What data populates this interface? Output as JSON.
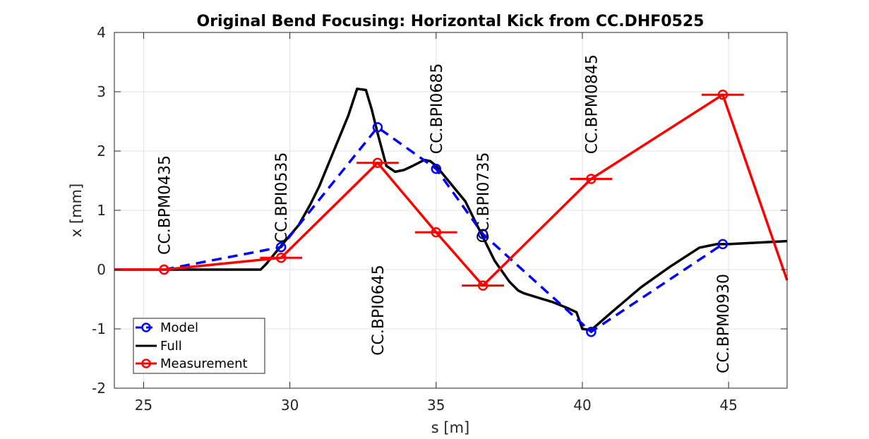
{
  "chart_data": {
    "type": "line",
    "title": "Original Bend Focusing: Horizontal Kick from CC.DHF0525",
    "xlabel": "s [m]",
    "ylabel": "x [mm]",
    "xlim": [
      24,
      47
    ],
    "ylim": [
      -2,
      4
    ],
    "xticks": [
      25,
      30,
      35,
      40,
      45
    ],
    "yticks": [
      -2,
      -1,
      0,
      1,
      2,
      3,
      4
    ],
    "grid": true,
    "legend_position": "bottom-left",
    "series": [
      {
        "name": "Model",
        "color": "#0000ff",
        "style": "dashed-with-circle-markers",
        "x": [
          25.7,
          29.7,
          33.0,
          35.0,
          36.6,
          40.3,
          44.8
        ],
        "y": [
          0.0,
          0.38,
          2.4,
          1.7,
          0.6,
          -1.05,
          0.43
        ]
      },
      {
        "name": "Full",
        "color": "#000000",
        "style": "solid",
        "x": [
          24.0,
          29.0,
          29.2,
          29.7,
          30.3,
          30.7,
          31.0,
          31.5,
          32.0,
          32.3,
          32.6,
          32.8,
          33.0,
          33.3,
          33.6,
          33.9,
          34.2,
          34.6,
          34.8,
          35.0,
          35.5,
          36.0,
          36.5,
          37.0,
          37.5,
          37.8,
          38.0,
          39.0,
          39.5,
          39.8,
          40.0,
          40.3,
          41.0,
          42.0,
          43.0,
          44.0,
          44.3,
          44.6,
          45.0,
          47.0
        ],
        "y": [
          0.0,
          0.0,
          0.1,
          0.4,
          0.75,
          1.1,
          1.4,
          2.0,
          2.6,
          3.05,
          3.03,
          2.7,
          2.3,
          1.75,
          1.65,
          1.68,
          1.75,
          1.85,
          1.83,
          1.75,
          1.45,
          1.15,
          0.65,
          0.15,
          -0.2,
          -0.35,
          -0.4,
          -0.55,
          -0.65,
          -0.72,
          -1.0,
          -1.02,
          -0.72,
          -0.3,
          0.05,
          0.37,
          0.4,
          0.43,
          0.43,
          0.48
        ]
      },
      {
        "name": "Measurement",
        "color": "#ff0000",
        "style": "solid-with-circle-markers-and-horizontal-errorbars",
        "x": [
          24.0,
          25.7,
          29.7,
          33.0,
          35.0,
          36.6,
          40.3,
          44.8,
          47.0
        ],
        "y": [
          0.0,
          0.0,
          0.2,
          1.8,
          0.63,
          -0.27,
          1.53,
          2.95,
          -0.18
        ],
        "markers": [
          {
            "x": 25.7,
            "y": 0.0,
            "bar": false
          },
          {
            "x": 29.7,
            "y": 0.2,
            "bar": true,
            "xerr": 0.72
          },
          {
            "x": 33.0,
            "y": 1.8,
            "bar": true,
            "xerr": 0.72
          },
          {
            "x": 35.0,
            "y": 0.63,
            "bar": true,
            "xerr": 0.72
          },
          {
            "x": 36.6,
            "y": -0.27,
            "bar": true,
            "xerr": 0.72
          },
          {
            "x": 40.3,
            "y": 1.53,
            "bar": true,
            "xerr": 0.72
          },
          {
            "x": 44.8,
            "y": 2.95,
            "bar": true,
            "xerr": 0.72
          }
        ]
      }
    ],
    "annotations": [
      {
        "text": "CC.BPM0435",
        "x": 25.7,
        "y": 0.25
      },
      {
        "text": "CC.BPI0535",
        "x": 29.7,
        "y": 0.45
      },
      {
        "text": "CC.BPI0645",
        "x": 33.0,
        "y": -1.45
      },
      {
        "text": "CC.BPI0685",
        "x": 35.0,
        "y": 1.95
      },
      {
        "text": "CC.BPI0735",
        "x": 36.6,
        "y": 0.45
      },
      {
        "text": "CC.BPM0845",
        "x": 40.3,
        "y": 1.95
      },
      {
        "text": "CC.BPM0930",
        "x": 44.8,
        "y": -1.75
      }
    ]
  }
}
